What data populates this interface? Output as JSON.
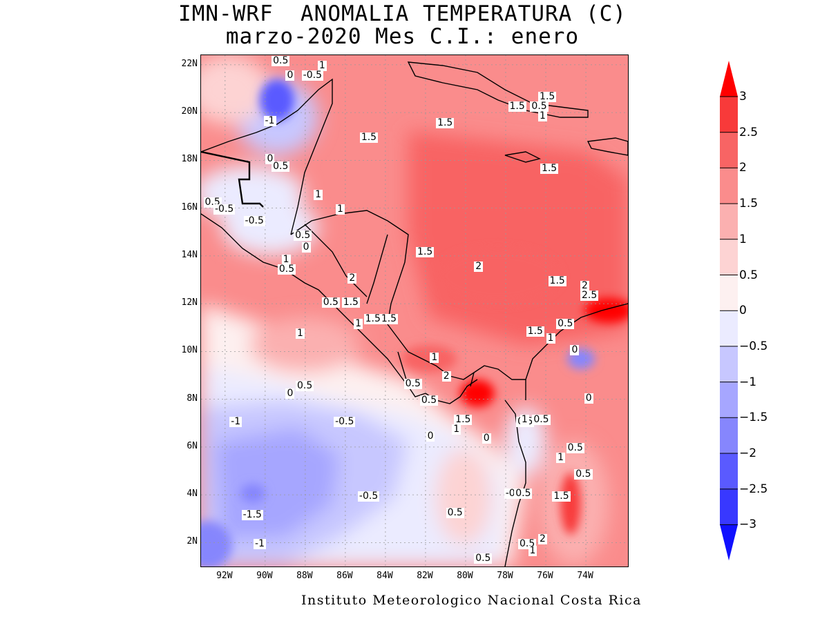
{
  "title": {
    "line1": "IMN-WRF  ANOMALIA TEMPERATURA (C)",
    "line2": "marzo-2020 Mes C.I.: enero"
  },
  "footer": "Instituto Meteorologico Nacional Costa Rica",
  "map": {
    "extent": {
      "lon_min": -93.2,
      "lon_max": -71.9,
      "lat_min": 1.0,
      "lat_max": 22.4
    },
    "lat_ticks": [
      "22N",
      "20N",
      "18N",
      "16N",
      "14N",
      "12N",
      "10N",
      "8N",
      "6N",
      "4N",
      "2N"
    ],
    "lon_ticks": [
      "92W",
      "90W",
      "88W",
      "86W",
      "84W",
      "82W",
      "80W",
      "78W",
      "76W",
      "74W"
    ],
    "contour_labels": [
      {
        "text": "0.5",
        "lon": -89.3,
        "lat": 22.1
      },
      {
        "text": "1",
        "lon": -87.0,
        "lat": 21.9
      },
      {
        "text": "0",
        "lon": -88.6,
        "lat": 21.5
      },
      {
        "text": "-0.5",
        "lon": -87.8,
        "lat": 21.5
      },
      {
        "text": "-1",
        "lon": -89.7,
        "lat": 19.6
      },
      {
        "text": "1.5",
        "lon": -76.0,
        "lat": 20.6
      },
      {
        "text": "1.5",
        "lon": -77.5,
        "lat": 20.2
      },
      {
        "text": "0.5",
        "lon": -76.4,
        "lat": 20.2
      },
      {
        "text": "1",
        "lon": -76.0,
        "lat": 19.8
      },
      {
        "text": "1.5",
        "lon": -81.1,
        "lat": 19.5
      },
      {
        "text": "1.5",
        "lon": -84.9,
        "lat": 18.9
      },
      {
        "text": "0",
        "lon": -89.6,
        "lat": 18.0
      },
      {
        "text": "0.5",
        "lon": -89.3,
        "lat": 17.7
      },
      {
        "text": "1.5",
        "lon": -75.9,
        "lat": 17.6
      },
      {
        "text": "1",
        "lon": -87.2,
        "lat": 16.5
      },
      {
        "text": "0.5",
        "lon": -92.7,
        "lat": 16.2
      },
      {
        "text": "-0.5",
        "lon": -92.2,
        "lat": 15.9
      },
      {
        "text": "1",
        "lon": -86.1,
        "lat": 15.9
      },
      {
        "text": "-0.5",
        "lon": -90.7,
        "lat": 15.4
      },
      {
        "text": "0.5",
        "lon": -88.2,
        "lat": 14.8
      },
      {
        "text": "0",
        "lon": -87.8,
        "lat": 14.3
      },
      {
        "text": "1.5",
        "lon": -82.1,
        "lat": 14.1
      },
      {
        "text": "1",
        "lon": -88.8,
        "lat": 13.8
      },
      {
        "text": "2",
        "lon": -79.2,
        "lat": 13.5
      },
      {
        "text": "0.5",
        "lon": -89.0,
        "lat": 13.4
      },
      {
        "text": "2",
        "lon": -85.5,
        "lat": 13.0
      },
      {
        "text": "1.5",
        "lon": -75.5,
        "lat": 12.9
      },
      {
        "text": "2",
        "lon": -73.9,
        "lat": 12.7
      },
      {
        "text": "2.5",
        "lon": -73.9,
        "lat": 12.3
      },
      {
        "text": "0.5",
        "lon": -86.8,
        "lat": 12.0
      },
      {
        "text": "1.5",
        "lon": -85.8,
        "lat": 12.0
      },
      {
        "text": "1.5",
        "lon": -84.7,
        "lat": 11.3
      },
      {
        "text": "1.5",
        "lon": -83.9,
        "lat": 11.3
      },
      {
        "text": "1",
        "lon": -85.2,
        "lat": 11.1
      },
      {
        "text": "0.5",
        "lon": -75.1,
        "lat": 11.1
      },
      {
        "text": "1.5",
        "lon": -76.6,
        "lat": 10.8
      },
      {
        "text": "1",
        "lon": -88.1,
        "lat": 10.7
      },
      {
        "text": "1",
        "lon": -75.6,
        "lat": 10.5
      },
      {
        "text": "0",
        "lon": -74.4,
        "lat": 10.0
      },
      {
        "text": "1",
        "lon": -81.4,
        "lat": 9.7
      },
      {
        "text": "2",
        "lon": -80.8,
        "lat": 8.9
      },
      {
        "text": "0.5",
        "lon": -82.7,
        "lat": 8.6
      },
      {
        "text": "0.5",
        "lon": -88.1,
        "lat": 8.5
      },
      {
        "text": "0",
        "lon": -88.6,
        "lat": 8.2
      },
      {
        "text": "0.5",
        "lon": -81.9,
        "lat": 7.9
      },
      {
        "text": "0",
        "lon": -73.7,
        "lat": 8.0
      },
      {
        "text": "-1",
        "lon": -91.4,
        "lat": 7.0
      },
      {
        "text": "-0.5",
        "lon": -86.2,
        "lat": 7.0
      },
      {
        "text": "1.5",
        "lon": -80.2,
        "lat": 7.1
      },
      {
        "text": "0.5",
        "lon": -77.1,
        "lat": 7.0
      },
      {
        "text": "1",
        "lon": -76.9,
        "lat": 7.1
      },
      {
        "text": "0.5",
        "lon": -76.3,
        "lat": 7.1
      },
      {
        "text": "1",
        "lon": -80.3,
        "lat": 6.7
      },
      {
        "text": "0",
        "lon": -81.6,
        "lat": 6.4
      },
      {
        "text": "0",
        "lon": -78.8,
        "lat": 6.3
      },
      {
        "text": "0.5",
        "lon": -74.6,
        "lat": 5.9
      },
      {
        "text": "1",
        "lon": -75.1,
        "lat": 5.5
      },
      {
        "text": "0.5",
        "lon": -74.2,
        "lat": 4.8
      },
      {
        "text": "-0.5",
        "lon": -77.7,
        "lat": 4.0
      },
      {
        "text": "0.5",
        "lon": -77.2,
        "lat": 4.0
      },
      {
        "text": "-0.5",
        "lon": -85.0,
        "lat": 3.9
      },
      {
        "text": "1.5",
        "lon": -75.3,
        "lat": 3.9
      },
      {
        "text": "-1.5",
        "lon": -90.8,
        "lat": 3.1
      },
      {
        "text": "0.5",
        "lon": -80.6,
        "lat": 3.2
      },
      {
        "text": "2",
        "lon": -76.0,
        "lat": 2.1
      },
      {
        "text": "-1",
        "lon": -90.2,
        "lat": 1.9
      },
      {
        "text": "0.5",
        "lon": -77.0,
        "lat": 1.9
      },
      {
        "text": "1",
        "lon": -76.5,
        "lat": 1.6
      },
      {
        "text": "0.5",
        "lon": -79.2,
        "lat": 1.2
      }
    ]
  },
  "colorbar": {
    "levels": [
      "3",
      "2.5",
      "2",
      "1.5",
      "1",
      "0.5",
      "0",
      "-0.5",
      "-1",
      "-1.5",
      "-2",
      "-2.5",
      "-3"
    ],
    "colors": [
      "#ff0000",
      "#f83a3a",
      "#f86464",
      "#fa8c8c",
      "#fbb0b0",
      "#fdd3d3",
      "#fdf0f0",
      "#ebebff",
      "#c7c7ff",
      "#a6a6ff",
      "#8686fd",
      "#5a5aff",
      "#3838ff",
      "#1010ff"
    ]
  }
}
